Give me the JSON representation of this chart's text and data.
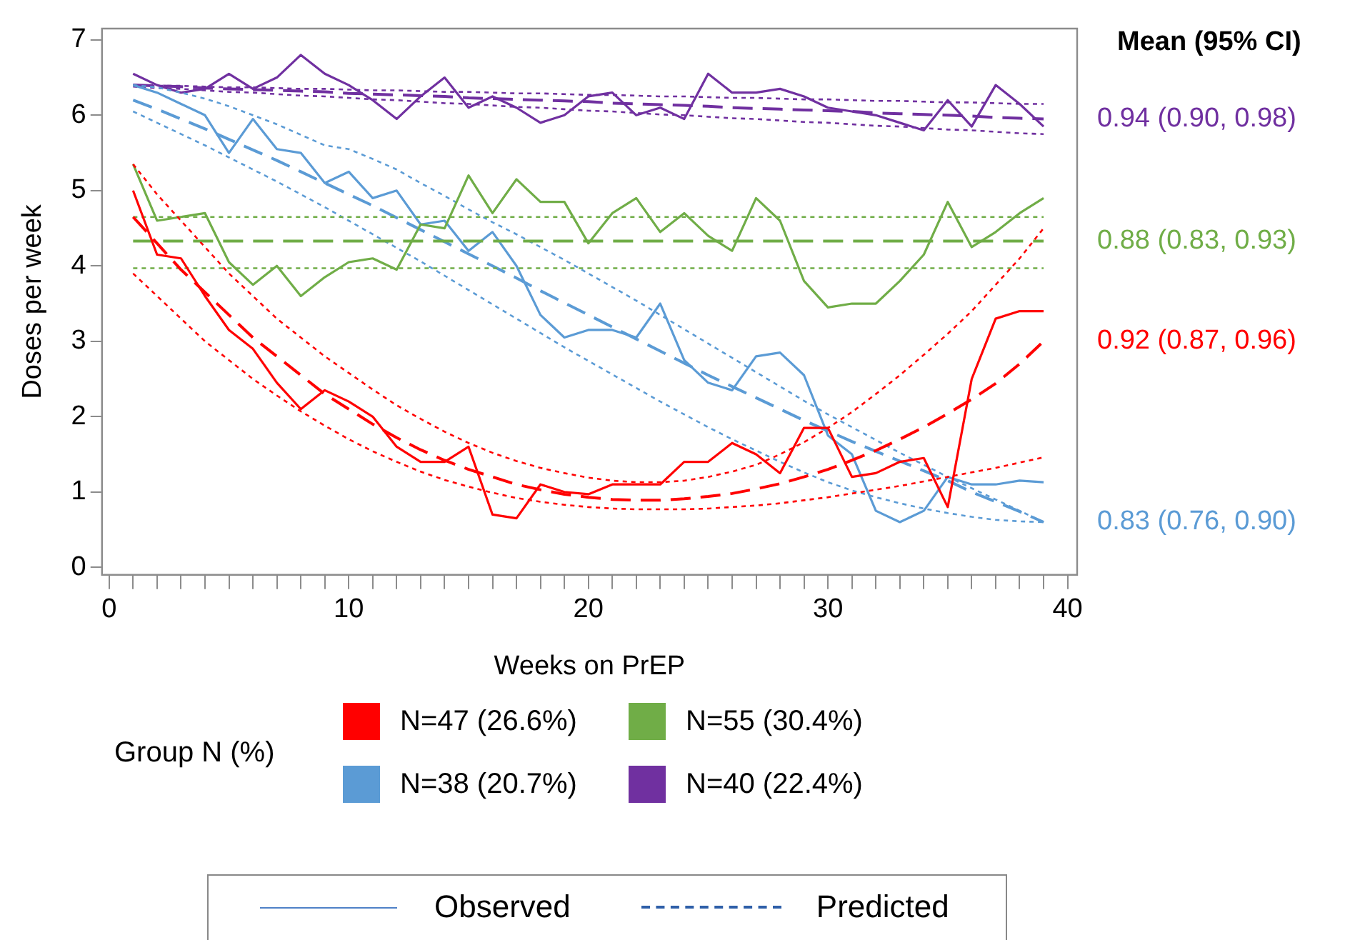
{
  "chart_data": {
    "type": "line",
    "xlabel": "Weeks on PrEP",
    "ylabel": "Doses per week",
    "legend_title": "Group N (%)",
    "legend": "bottom",
    "xlim": [
      -0.3,
      40.4
    ],
    "ylim": [
      -0.1,
      7.15
    ],
    "xticks": [
      0,
      {
        "value": 1,
        "label": null
      },
      {
        "value": 2,
        "label": null
      },
      {
        "value": 3,
        "label": null
      },
      {
        "value": 4,
        "label": null
      },
      {
        "value": 5,
        "label": null
      },
      {
        "value": 6,
        "label": null
      },
      {
        "value": 7,
        "label": null
      },
      {
        "value": 8,
        "label": null
      },
      {
        "value": 9,
        "label": null
      },
      10,
      {
        "value": 11,
        "label": null
      },
      {
        "value": 12,
        "label": null
      },
      {
        "value": 13,
        "label": null
      },
      {
        "value": 14,
        "label": null
      },
      {
        "value": 15,
        "label": null
      },
      {
        "value": 16,
        "label": null
      },
      {
        "value": 17,
        "label": null
      },
      {
        "value": 18,
        "label": null
      },
      {
        "value": 19,
        "label": null
      },
      20,
      {
        "value": 21,
        "label": null
      },
      {
        "value": 22,
        "label": null
      },
      {
        "value": 23,
        "label": null
      },
      {
        "value": 24,
        "label": null
      },
      {
        "value": 25,
        "label": null
      },
      {
        "value": 26,
        "label": null
      },
      {
        "value": 27,
        "label": null
      },
      {
        "value": 28,
        "label": null
      },
      {
        "value": 29,
        "label": null
      },
      30,
      {
        "value": 31,
        "label": null
      },
      {
        "value": 32,
        "label": null
      },
      {
        "value": 33,
        "label": null
      },
      {
        "value": 34,
        "label": null
      },
      {
        "value": 35,
        "label": null
      },
      {
        "value": 36,
        "label": null
      },
      {
        "value": 37,
        "label": null
      },
      {
        "value": 38,
        "label": null
      },
      {
        "value": 39,
        "label": null
      },
      40
    ],
    "yticks": [
      0,
      1,
      2,
      3,
      4,
      5,
      6,
      7
    ],
    "x": [
      1,
      2,
      3,
      4,
      5,
      6,
      7,
      8,
      9,
      10,
      11,
      12,
      13,
      14,
      15,
      16,
      17,
      18,
      19,
      20,
      21,
      22,
      23,
      24,
      25,
      26,
      27,
      28,
      29,
      30,
      31,
      32,
      33,
      34,
      35,
      36,
      37,
      38,
      39
    ],
    "series": [
      {
        "name": "N=47 (26.6%)",
        "color": "#ff0000",
        "line_style": "solid",
        "values": [
          5.0,
          4.15,
          4.1,
          3.6,
          3.15,
          2.9,
          2.45,
          2.1,
          2.35,
          2.2,
          2.0,
          1.6,
          1.4,
          1.4,
          1.6,
          0.7,
          0.65,
          1.1,
          1.0,
          0.97,
          1.1,
          1.1,
          1.1,
          1.4,
          1.4,
          1.65,
          1.5,
          1.25,
          1.85,
          1.85,
          1.2,
          1.25,
          1.4,
          1.45,
          0.8,
          2.5,
          3.3,
          3.4,
          3.4
        ]
      },
      {
        "color": "#ff0000",
        "line_style": "dashed",
        "values": [
          4.65,
          4.3,
          3.95,
          3.65,
          3.35,
          3.05,
          2.8,
          2.55,
          2.3,
          2.1,
          1.9,
          1.72,
          1.56,
          1.42,
          1.3,
          1.2,
          1.1,
          1.03,
          0.97,
          0.93,
          0.9,
          0.89,
          0.89,
          0.91,
          0.94,
          0.98,
          1.04,
          1.11,
          1.2,
          1.3,
          1.42,
          1.55,
          1.7,
          1.86,
          2.04,
          2.23,
          2.44,
          2.7,
          3.0
        ]
      },
      {
        "color": "#ff0000",
        "line_style": "dotted",
        "values": [
          5.35,
          4.95,
          4.6,
          4.25,
          3.9,
          3.6,
          3.3,
          3.05,
          2.8,
          2.58,
          2.36,
          2.15,
          1.97,
          1.8,
          1.65,
          1.52,
          1.41,
          1.32,
          1.25,
          1.19,
          1.15,
          1.13,
          1.13,
          1.15,
          1.2,
          1.27,
          1.36,
          1.5,
          1.66,
          1.85,
          2.06,
          2.3,
          2.55,
          2.82,
          3.1,
          3.4,
          3.75,
          4.1,
          4.5
        ]
      },
      {
        "color": "#ff0000",
        "line_style": "dotted",
        "values": [
          3.9,
          3.6,
          3.3,
          3.0,
          2.75,
          2.5,
          2.28,
          2.07,
          1.88,
          1.7,
          1.54,
          1.4,
          1.27,
          1.16,
          1.07,
          0.99,
          0.92,
          0.87,
          0.83,
          0.8,
          0.78,
          0.77,
          0.77,
          0.77,
          0.78,
          0.8,
          0.82,
          0.85,
          0.89,
          0.93,
          0.98,
          1.03,
          1.08,
          1.14,
          1.2,
          1.26,
          1.32,
          1.39,
          1.46
        ]
      },
      {
        "name": "N=55 (30.4%)",
        "color": "#70ad47",
        "line_style": "solid",
        "values": [
          5.35,
          4.6,
          4.65,
          4.7,
          4.05,
          3.75,
          4.0,
          3.6,
          3.85,
          4.05,
          4.1,
          3.95,
          4.55,
          4.5,
          5.2,
          4.7,
          5.15,
          4.85,
          4.85,
          4.3,
          4.7,
          4.9,
          4.45,
          4.7,
          4.4,
          4.2,
          4.9,
          4.6,
          3.8,
          3.45,
          3.5,
          3.5,
          3.8,
          4.15,
          4.85,
          4.25,
          4.45,
          4.7,
          4.9
        ]
      },
      {
        "color": "#70ad47",
        "line_style": "dashed",
        "values": [
          4.33,
          4.33,
          4.33,
          4.33,
          4.33,
          4.33,
          4.33,
          4.33,
          4.33,
          4.33,
          4.33,
          4.33,
          4.33,
          4.33,
          4.33,
          4.33,
          4.33,
          4.33,
          4.33,
          4.33,
          4.33,
          4.33,
          4.33,
          4.33,
          4.33,
          4.33,
          4.33,
          4.33,
          4.33,
          4.33,
          4.33,
          4.33,
          4.33,
          4.33,
          4.33,
          4.33,
          4.33,
          4.33,
          4.33
        ]
      },
      {
        "color": "#70ad47",
        "line_style": "dotted",
        "values": [
          4.65,
          4.65,
          4.65,
          4.65,
          4.65,
          4.65,
          4.65,
          4.65,
          4.65,
          4.65,
          4.65,
          4.65,
          4.65,
          4.65,
          4.65,
          4.65,
          4.65,
          4.65,
          4.65,
          4.65,
          4.65,
          4.65,
          4.65,
          4.65,
          4.65,
          4.65,
          4.65,
          4.65,
          4.65,
          4.65,
          4.65,
          4.65,
          4.65,
          4.65,
          4.65,
          4.65,
          4.65,
          4.65,
          4.65
        ]
      },
      {
        "color": "#70ad47",
        "line_style": "dotted",
        "values": [
          3.97,
          3.97,
          3.97,
          3.97,
          3.97,
          3.97,
          3.97,
          3.97,
          3.97,
          3.97,
          3.97,
          3.97,
          3.97,
          3.97,
          3.97,
          3.97,
          3.97,
          3.97,
          3.97,
          3.97,
          3.97,
          3.97,
          3.97,
          3.97,
          3.97,
          3.97,
          3.97,
          3.97,
          3.97,
          3.97,
          3.97,
          3.97,
          3.97,
          3.97,
          3.97,
          3.97,
          3.97,
          3.97,
          3.97
        ]
      },
      {
        "name": "N=38 (20.7%)",
        "color": "#5b9bd5",
        "line_style": "solid",
        "values": [
          6.4,
          6.3,
          6.15,
          6.0,
          5.5,
          5.95,
          5.55,
          5.5,
          5.1,
          5.25,
          4.9,
          5.0,
          4.55,
          4.6,
          4.2,
          4.45,
          4.0,
          3.35,
          3.05,
          3.15,
          3.15,
          3.05,
          3.5,
          2.75,
          2.45,
          2.35,
          2.8,
          2.85,
          2.55,
          1.75,
          1.5,
          0.75,
          0.6,
          0.75,
          1.2,
          1.1,
          1.1,
          1.15,
          1.13
        ]
      },
      {
        "color": "#5b9bd5",
        "line_style": "dashed",
        "values": [
          6.2,
          6.08,
          5.95,
          5.82,
          5.68,
          5.54,
          5.4,
          5.25,
          5.1,
          4.95,
          4.8,
          4.64,
          4.48,
          4.32,
          4.16,
          4.0,
          3.84,
          3.67,
          3.51,
          3.35,
          3.19,
          3.03,
          2.87,
          2.71,
          2.55,
          2.4,
          2.25,
          2.1,
          1.95,
          1.81,
          1.67,
          1.54,
          1.41,
          1.28,
          1.15,
          1.0,
          0.87,
          0.74,
          0.6
        ]
      },
      {
        "color": "#5b9bd5",
        "line_style": "dotted",
        "values": [
          6.4,
          6.37,
          6.3,
          6.22,
          6.12,
          6.0,
          5.88,
          5.74,
          5.6,
          5.55,
          5.42,
          5.28,
          5.1,
          4.93,
          4.75,
          4.58,
          4.42,
          4.25,
          4.08,
          3.9,
          3.72,
          3.54,
          3.35,
          3.16,
          2.97,
          2.78,
          2.59,
          2.4,
          2.21,
          2.03,
          1.86,
          1.69,
          1.52,
          1.36,
          1.2,
          1.05,
          0.9,
          0.75,
          0.6
        ]
      },
      {
        "color": "#5b9bd5",
        "line_style": "dotted",
        "values": [
          6.05,
          5.9,
          5.75,
          5.6,
          5.44,
          5.28,
          5.12,
          4.95,
          4.78,
          4.6,
          4.42,
          4.24,
          4.06,
          3.87,
          3.68,
          3.49,
          3.3,
          3.11,
          2.92,
          2.74,
          2.56,
          2.38,
          2.2,
          2.03,
          1.86,
          1.7,
          1.55,
          1.4,
          1.26,
          1.13,
          1.02,
          0.93,
          0.85,
          0.78,
          0.72,
          0.67,
          0.63,
          0.61,
          0.6
        ]
      },
      {
        "name": "N=40 (22.4%)",
        "color": "#7030a0",
        "line_style": "solid",
        "values": [
          6.55,
          6.4,
          6.3,
          6.35,
          6.55,
          6.35,
          6.5,
          6.8,
          6.55,
          6.4,
          6.2,
          5.95,
          6.25,
          6.5,
          6.1,
          6.25,
          6.1,
          5.9,
          6.0,
          6.25,
          6.3,
          6.0,
          6.1,
          5.95,
          6.55,
          6.3,
          6.3,
          6.35,
          6.25,
          6.1,
          6.05,
          6.0,
          5.9,
          5.8,
          6.2,
          5.85,
          6.4,
          6.15,
          5.85
        ]
      },
      {
        "color": "#7030a0",
        "line_style": "dashed",
        "values": [
          6.4,
          6.39,
          6.38,
          6.36,
          6.35,
          6.34,
          6.33,
          6.32,
          6.31,
          6.29,
          6.28,
          6.27,
          6.26,
          6.25,
          6.23,
          6.22,
          6.21,
          6.2,
          6.19,
          6.18,
          6.16,
          6.15,
          6.14,
          6.13,
          6.12,
          6.1,
          6.09,
          6.08,
          6.07,
          6.06,
          6.05,
          6.03,
          6.02,
          6.01,
          6.0,
          5.99,
          5.97,
          5.96,
          5.95
        ]
      },
      {
        "color": "#7030a0",
        "line_style": "dotted",
        "values": [
          6.4,
          6.39,
          6.39,
          6.38,
          6.37,
          6.37,
          6.36,
          6.35,
          6.35,
          6.34,
          6.33,
          6.33,
          6.32,
          6.31,
          6.31,
          6.3,
          6.29,
          6.29,
          6.28,
          6.27,
          6.27,
          6.26,
          6.25,
          6.25,
          6.24,
          6.23,
          6.23,
          6.22,
          6.21,
          6.21,
          6.2,
          6.19,
          6.19,
          6.18,
          6.17,
          6.17,
          6.16,
          6.15,
          6.15
        ]
      },
      {
        "color": "#7030a0",
        "line_style": "dotted",
        "values": [
          6.38,
          6.36,
          6.35,
          6.33,
          6.31,
          6.3,
          6.28,
          6.26,
          6.25,
          6.23,
          6.21,
          6.2,
          6.18,
          6.16,
          6.15,
          6.13,
          6.11,
          6.1,
          6.08,
          6.06,
          6.05,
          6.03,
          6.01,
          6.0,
          5.98,
          5.96,
          5.95,
          5.93,
          5.91,
          5.9,
          5.88,
          5.86,
          5.85,
          5.83,
          5.81,
          5.8,
          5.78,
          5.76,
          5.75
        ]
      }
    ],
    "annotations": [
      "Mean (95% CI)",
      "0.92 (0.87, 0.96)",
      "0.88 (0.83, 0.93)",
      "0.83 (0.76, 0.90)",
      "0.94 (0.90, 0.98)",
      "Observed",
      "Predicted"
    ]
  }
}
